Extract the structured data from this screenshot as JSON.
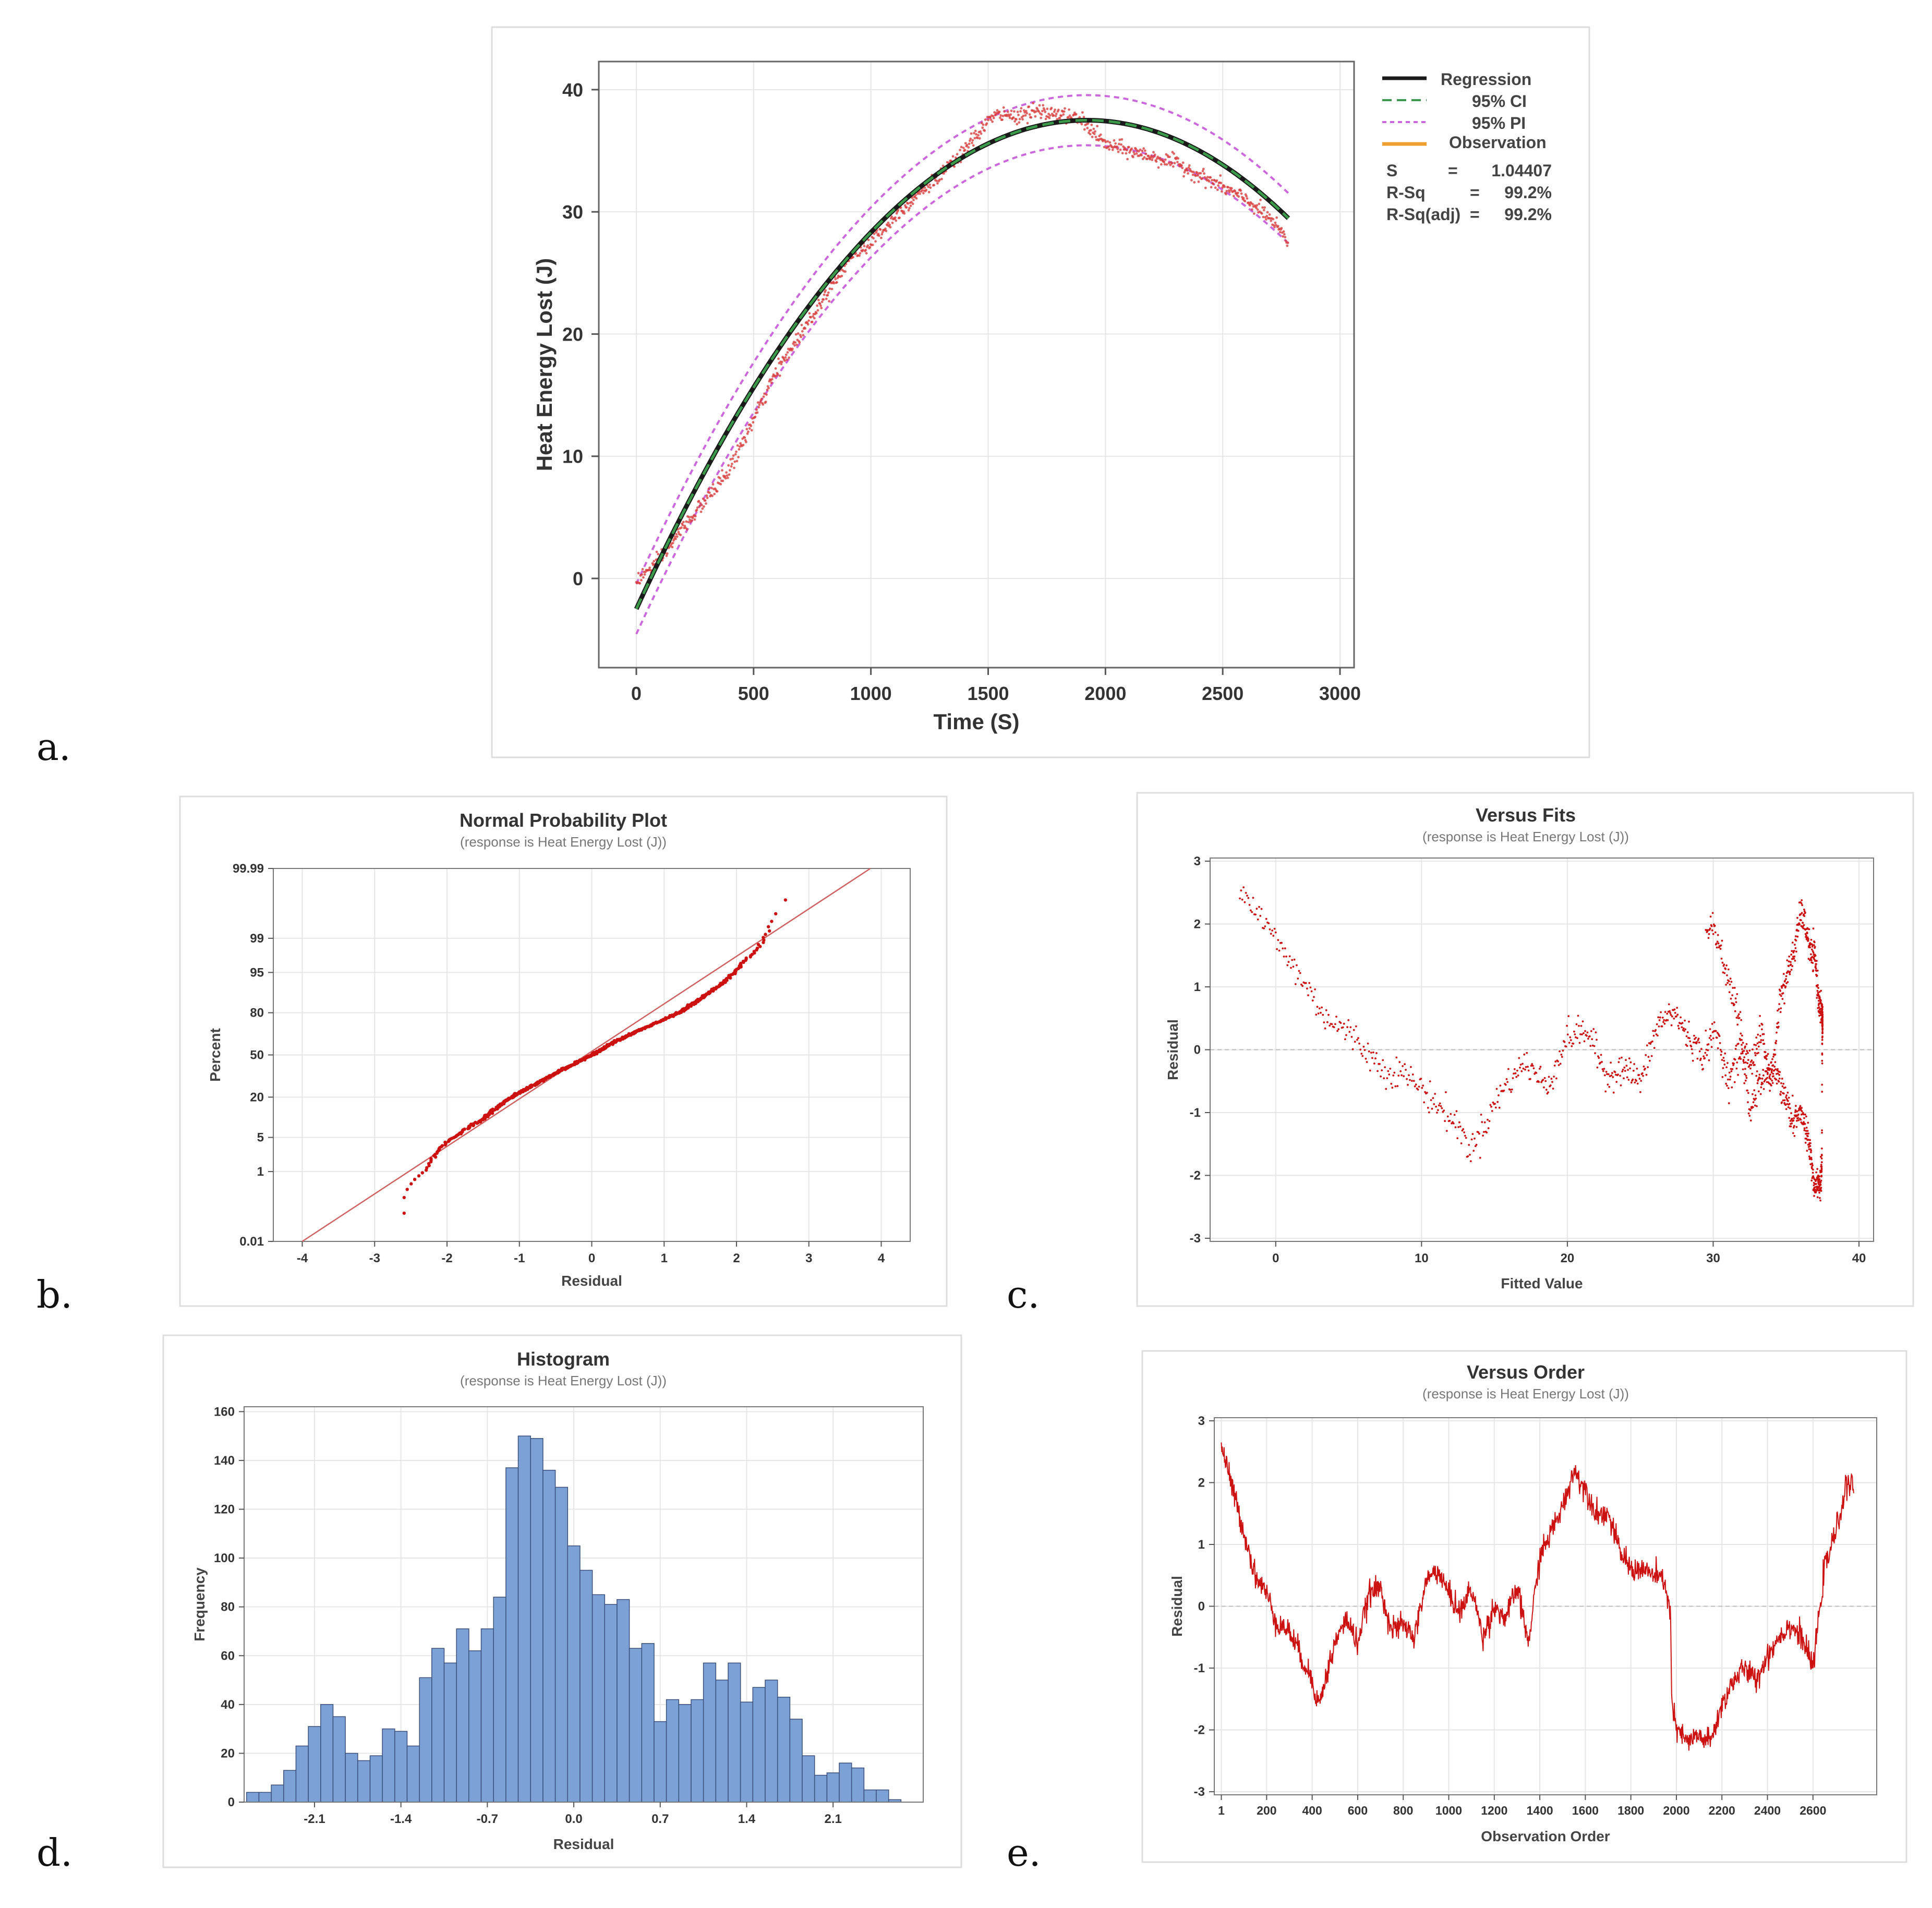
{
  "panel_letters": [
    "a.",
    "b.",
    "c.",
    "d.",
    "e."
  ],
  "colors": {
    "regression": "#1a1a1a",
    "ci": "#3a9a4a",
    "pi": "#cc66dd",
    "observation": "#f0a030",
    "obs_points": "#d84040",
    "residual_points": "#cc1111",
    "histogram_fill": "#7ba1d6",
    "histogram_edge": "#3a4f7a",
    "grid": "#e6e6e6",
    "frame": "#888888"
  },
  "chart_data": [
    {
      "id": "a",
      "type": "line",
      "title": "",
      "xlabel": "Time (S)",
      "ylabel": "Heat Energy Lost (J)",
      "xlim": [
        -160,
        3060
      ],
      "ylim": [
        -7.3,
        42.3
      ],
      "xticks": [
        0,
        500,
        1000,
        1500,
        2000,
        2500,
        3000
      ],
      "yticks": [
        0,
        10,
        20,
        30,
        40
      ],
      "grid": true,
      "legend_position": "right",
      "legend": [
        "Regression",
        "95% CI",
        "95% PI",
        "Observation"
      ],
      "stats": [
        {
          "label": "S",
          "eq": "=",
          "value": "1.04407"
        },
        {
          "label": "R-Sq",
          "eq": "=",
          "value": "99.2%"
        },
        {
          "label": "R-Sq(adj)",
          "eq": "=",
          "value": "99.2%"
        }
      ],
      "regression": {
        "x_range": [
          0,
          2780
        ],
        "peak_x": 1920,
        "peak_y": 37.5,
        "y_at_0": -2.5
      },
      "pi_halfwidth": 2.05,
      "observation_trace": {
        "x": [
          0,
          100,
          200,
          300,
          400,
          500,
          600,
          700,
          800,
          900,
          1000,
          1100,
          1200,
          1300,
          1400,
          1500,
          1550,
          1600,
          1700,
          1800,
          1900,
          2000,
          2100,
          2200,
          2300,
          2400,
          2500,
          2600,
          2700,
          2780
        ],
        "y": [
          -0.2,
          1.5,
          4.2,
          6.5,
          9.0,
          13.0,
          17.0,
          20.0,
          23.0,
          26.0,
          27.5,
          29.5,
          31.5,
          33.0,
          35.0,
          37.5,
          38.0,
          37.8,
          38.2,
          38.0,
          37.5,
          35.5,
          35.0,
          34.5,
          34.0,
          33.0,
          32.0,
          31.0,
          29.5,
          27.5
        ]
      }
    },
    {
      "id": "b",
      "type": "scatter",
      "title": "Normal Probability Plot",
      "subtitle": "(response is Heat Energy Lost (J))",
      "xlabel": "Residual",
      "ylabel": "Percent",
      "xlim": [
        -4.4,
        4.4
      ],
      "xticks": [
        -4,
        -3,
        -2,
        -1,
        0,
        1,
        2,
        3,
        4
      ],
      "yticks": [
        0.01,
        1,
        5,
        20,
        50,
        80,
        95,
        99,
        99.99
      ],
      "ytick_labels": [
        "0.01",
        "1",
        "5",
        "20",
        "50",
        "80",
        "95",
        "99",
        "99.99"
      ],
      "fit_line": {
        "mean": 0,
        "sd": 1.04
      },
      "grid": true,
      "points_percent": [
        0.2,
        0.5,
        1,
        2,
        5,
        10,
        20,
        30,
        40,
        50,
        60,
        70,
        80,
        88,
        94,
        97,
        99,
        99.7,
        99.95
      ],
      "points_residual": [
        -2.6,
        -2.5,
        -2.3,
        -2.2,
        -1.9,
        -1.5,
        -1.1,
        -0.7,
        -0.35,
        0.0,
        0.3,
        0.7,
        1.2,
        1.55,
        1.9,
        2.1,
        2.4,
        2.5,
        2.7
      ]
    },
    {
      "id": "c",
      "type": "scatter",
      "title": "Versus Fits",
      "subtitle": "(response is Heat Energy Lost (J))",
      "xlabel": "Fitted Value",
      "ylabel": "Residual",
      "xlim": [
        -4.5,
        41
      ],
      "ylim": [
        -3.05,
        3.05
      ],
      "xticks": [
        0,
        10,
        20,
        30,
        40
      ],
      "yticks": [
        -3,
        -2,
        -1,
        0,
        1,
        2,
        3
      ],
      "grid": true,
      "reference_line": 0
    },
    {
      "id": "d",
      "type": "bar",
      "title": "Histogram",
      "subtitle": "(response is Heat Energy Lost (J))",
      "xlabel": "Residual",
      "ylabel": "Frequency",
      "xlim": [
        -2.67,
        2.83
      ],
      "ylim": [
        0,
        162
      ],
      "xticks": [
        -2.1,
        -1.4,
        -0.7,
        0.0,
        0.7,
        1.4,
        2.1
      ],
      "xtick_labels": [
        "-2.1",
        "-1.4",
        "-0.7",
        "0.0",
        "0.7",
        "1.4",
        "2.1"
      ],
      "yticks": [
        0,
        20,
        40,
        60,
        80,
        100,
        120,
        140,
        160
      ],
      "bin_start": -2.65,
      "bin_width": 0.1,
      "values": [
        4,
        4,
        7,
        13,
        23,
        31,
        40,
        35,
        20,
        17,
        19,
        30,
        29,
        23,
        51,
        63,
        57,
        71,
        62,
        71,
        84,
        137,
        150,
        149,
        136,
        129,
        105,
        95,
        85,
        81,
        83,
        63,
        65,
        33,
        42,
        40,
        42,
        57,
        50,
        57,
        41,
        47,
        50,
        43,
        34,
        19,
        11,
        12,
        16,
        14,
        5,
        5,
        1
      ],
      "grid": true
    },
    {
      "id": "e",
      "type": "line",
      "title": "Versus Order",
      "subtitle": "(response is Heat Energy Lost (J))",
      "xlabel": "Observation Order",
      "ylabel": "Residual",
      "xlim": [
        -30,
        2880
      ],
      "ylim": [
        -3.05,
        3.05
      ],
      "xticks": [
        1,
        200,
        400,
        600,
        800,
        1000,
        1200,
        1400,
        1600,
        1800,
        2000,
        2200,
        2400,
        2600
      ],
      "yticks": [
        -3,
        -2,
        -1,
        0,
        1,
        2,
        3
      ],
      "grid": true,
      "reference_line": 0,
      "trend": {
        "x": [
          1,
          50,
          100,
          150,
          200,
          250,
          300,
          350,
          400,
          430,
          450,
          500,
          550,
          600,
          650,
          700,
          750,
          800,
          850,
          900,
          950,
          1000,
          1050,
          1100,
          1150,
          1200,
          1250,
          1300,
          1350,
          1400,
          1450,
          1500,
          1550,
          1600,
          1650,
          1700,
          1750,
          1800,
          1850,
          1900,
          1950,
          1975,
          1980,
          2000,
          2050,
          2100,
          2150,
          2200,
          2250,
          2300,
          2350,
          2400,
          2450,
          2500,
          2550,
          2600,
          2650,
          2700,
          2750,
          2780
        ],
        "y": [
          2.6,
          1.9,
          1.2,
          0.5,
          0.2,
          -0.3,
          -0.4,
          -0.8,
          -1.2,
          -1.6,
          -1.3,
          -0.6,
          -0.2,
          -0.6,
          0.2,
          0.3,
          -0.4,
          -0.3,
          -0.5,
          0.4,
          0.6,
          0.2,
          -0.1,
          0.3,
          -0.5,
          0.0,
          -0.2,
          0.3,
          -0.6,
          0.8,
          1.2,
          1.6,
          2.2,
          1.9,
          1.5,
          1.5,
          0.9,
          0.6,
          0.6,
          0.5,
          0.4,
          -0.2,
          -1.6,
          -2.0,
          -2.2,
          -2.1,
          -2.2,
          -1.6,
          -1.2,
          -1.0,
          -1.2,
          -0.8,
          -0.5,
          -0.3,
          -0.5,
          -1.0,
          0.6,
          1.2,
          2.0,
          1.9
        ]
      }
    }
  ]
}
